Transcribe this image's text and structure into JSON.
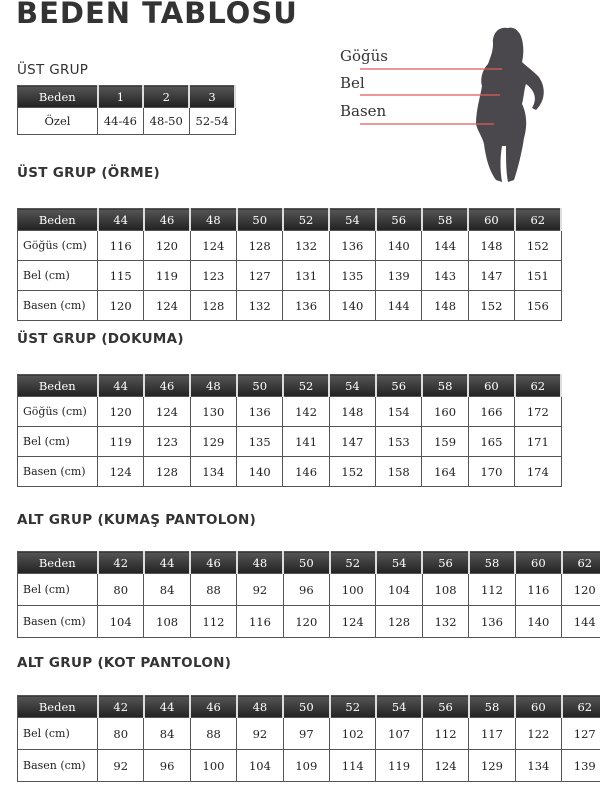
{
  "title": "BEDEN TABLOSU",
  "figure": {
    "labels": [
      "Göğüs",
      "Bel",
      "Basen"
    ],
    "line_color": "#e05a5a",
    "silhouette_color": "#4a484c"
  },
  "ust_grup": {
    "heading": "ÜST GRUP",
    "header": [
      "Beden",
      "1",
      "2",
      "3"
    ],
    "rows": [
      [
        "Özel",
        "44-46",
        "48-50",
        "52-54"
      ]
    ]
  },
  "tables": [
    {
      "heading": "ÜST GRUP (ÖRME)",
      "header": [
        "Beden",
        "44",
        "46",
        "48",
        "50",
        "52",
        "54",
        "56",
        "58",
        "60",
        "62"
      ],
      "rows": [
        [
          "Göğüs (cm)",
          "116",
          "120",
          "124",
          "128",
          "132",
          "136",
          "140",
          "144",
          "148",
          "152"
        ],
        [
          "Bel (cm)",
          "115",
          "119",
          "123",
          "127",
          "131",
          "135",
          "139",
          "143",
          "147",
          "151"
        ],
        [
          "Basen (cm)",
          "120",
          "124",
          "128",
          "132",
          "136",
          "140",
          "144",
          "148",
          "152",
          "156"
        ]
      ]
    },
    {
      "heading": "ÜST GRUP (DOKUMA)",
      "header": [
        "Beden",
        "44",
        "46",
        "48",
        "50",
        "52",
        "54",
        "56",
        "58",
        "60",
        "62"
      ],
      "rows": [
        [
          "Göğüs (cm)",
          "120",
          "124",
          "130",
          "136",
          "142",
          "148",
          "154",
          "160",
          "166",
          "172"
        ],
        [
          "Bel (cm)",
          "119",
          "123",
          "129",
          "135",
          "141",
          "147",
          "153",
          "159",
          "165",
          "171"
        ],
        [
          "Basen (cm)",
          "124",
          "128",
          "134",
          "140",
          "146",
          "152",
          "158",
          "164",
          "170",
          "174"
        ]
      ]
    },
    {
      "heading": "ALT GRUP (KUMAŞ PANTOLON)",
      "header": [
        "Beden",
        "42",
        "44",
        "46",
        "48",
        "50",
        "52",
        "54",
        "56",
        "58",
        "60",
        "62"
      ],
      "rows": [
        [
          "Bel (cm)",
          "80",
          "84",
          "88",
          "92",
          "96",
          "100",
          "104",
          "108",
          "112",
          "116",
          "120"
        ],
        [
          "Basen (cm)",
          "104",
          "108",
          "112",
          "116",
          "120",
          "124",
          "128",
          "132",
          "136",
          "140",
          "144"
        ]
      ]
    },
    {
      "heading": "ALT GRUP (KOT PANTOLON)",
      "header": [
        "Beden",
        "42",
        "44",
        "46",
        "48",
        "50",
        "52",
        "54",
        "56",
        "58",
        "60",
        "62"
      ],
      "rows": [
        [
          "Bel (cm)",
          "80",
          "84",
          "88",
          "92",
          "97",
          "102",
          "107",
          "112",
          "117",
          "122",
          "127"
        ],
        [
          "Basen (cm)",
          "92",
          "96",
          "100",
          "104",
          "109",
          "114",
          "119",
          "124",
          "129",
          "134",
          "139"
        ]
      ]
    }
  ]
}
